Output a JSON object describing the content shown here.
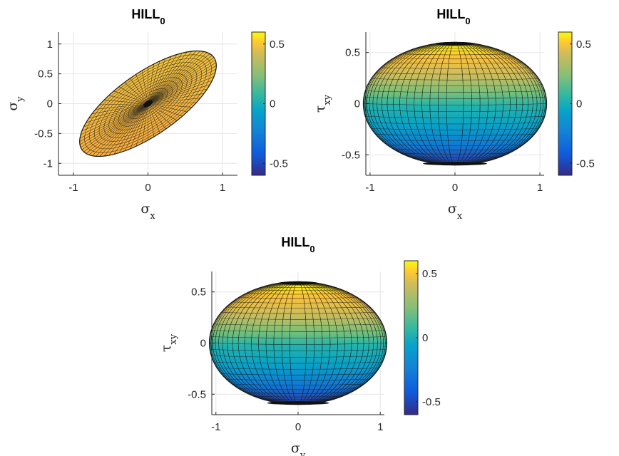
{
  "chart_data": [
    {
      "type": "surface",
      "title": "HILL",
      "title_subscript": "0",
      "xlabel": "σ",
      "xlabel_subscript": "x",
      "ylabel": "σ",
      "ylabel_subscript": "y",
      "xlim": [
        -1.2,
        1.2
      ],
      "ylim": [
        -1.2,
        1.2
      ],
      "xticks": [
        -1,
        0,
        1
      ],
      "xticklabels": [
        "-1",
        "0",
        "1"
      ],
      "yticks": [
        1,
        0.5,
        0,
        -0.5,
        -1
      ],
      "yticklabels": [
        "1",
        "0.5",
        "0",
        "-0.5",
        "-1"
      ],
      "grid": true,
      "surface": {
        "shape": "ellipse",
        "center": [
          0,
          0
        ],
        "semi_major": 1.08,
        "semi_minor": 0.52,
        "rotation_deg": 35,
        "color_low": 0.25,
        "color_high": 0.6
      },
      "colorbar": {
        "ticks": [
          0.5,
          0,
          -0.5
        ],
        "ticklabels": [
          "0.5",
          "0",
          "-0.5"
        ],
        "range": [
          -0.6,
          0.6
        ]
      }
    },
    {
      "type": "surface",
      "title": "HILL",
      "title_subscript": "0",
      "xlabel": "σ",
      "xlabel_subscript": "x",
      "ylabel": "τ",
      "ylabel_subscript": "xy",
      "xlim": [
        -1.05,
        1.05
      ],
      "ylim": [
        -0.7,
        0.7
      ],
      "xticks": [
        -1,
        0,
        1
      ],
      "xticklabels": [
        "-1",
        "0",
        "1"
      ],
      "yticks": [
        0.5,
        0,
        -0.5
      ],
      "yticklabels": [
        "0.5",
        "0",
        "-0.5"
      ],
      "grid": true,
      "surface": {
        "shape": "ellipse",
        "center": [
          0,
          0
        ],
        "semi_major": 1.08,
        "semi_minor": 0.6,
        "rotation_deg": 0,
        "color_low": -0.6,
        "color_high": 0.6
      },
      "colorbar": {
        "ticks": [
          0.5,
          0,
          -0.5
        ],
        "ticklabels": [
          "0.5",
          "0",
          "-0.5"
        ],
        "range": [
          -0.6,
          0.6
        ]
      }
    },
    {
      "type": "surface",
      "title": "HILL",
      "title_subscript": "0",
      "xlabel": "σ",
      "xlabel_subscript": "y",
      "ylabel": "τ",
      "ylabel_subscript": "xy",
      "xlim": [
        -1.05,
        1.05
      ],
      "ylim": [
        -0.7,
        0.7
      ],
      "xticks": [
        -1,
        0,
        1
      ],
      "xticklabels": [
        "-1",
        "0",
        "1"
      ],
      "yticks": [
        0.5,
        0,
        -0.5
      ],
      "yticklabels": [
        "0.5",
        "0",
        "-0.5"
      ],
      "grid": true,
      "surface": {
        "shape": "ellipse",
        "center": [
          0,
          0
        ],
        "semi_major": 1.08,
        "semi_minor": 0.6,
        "rotation_deg": 0,
        "color_low": -0.6,
        "color_high": 0.6
      },
      "colorbar": {
        "ticks": [
          0.5,
          0,
          -0.5
        ],
        "ticklabels": [
          "0.5",
          "0",
          "-0.5"
        ],
        "range": [
          -0.6,
          0.6
        ]
      }
    }
  ]
}
